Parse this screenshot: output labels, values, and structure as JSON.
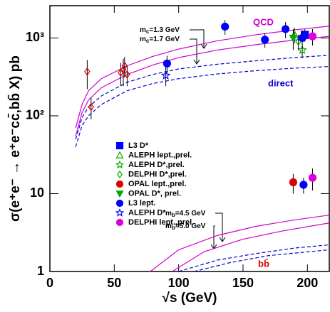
{
  "chart_data": {
    "type": "scatter",
    "ylabel": "σ(e⁺e⁻ → e⁺e⁻cc̄,bb̄ X) pb",
    "xlabel": "√s (GeV)",
    "xlim": [
      0,
      217
    ],
    "ylim": [
      1,
      2600
    ],
    "logy": true,
    "xticks": [
      0,
      50,
      100,
      150,
      200
    ],
    "yticks": [
      1,
      10,
      {
        "value": 100,
        "label": "10²"
      },
      {
        "value": 1000,
        "label": "10³"
      }
    ],
    "series": [
      {
        "name": "L3 D*",
        "color": "#0000ff",
        "marker": "square",
        "filled": true,
        "x": [
          198
        ],
        "values": [
          1100
        ],
        "errors": [
          200
        ]
      },
      {
        "name": "ALEPH lept.,prel.",
        "color": "#00aa00",
        "marker": "triangle",
        "filled": false,
        "x": [
          190
        ],
        "values": [
          1100
        ],
        "errors": [
          250
        ]
      },
      {
        "name": "ALEPH D*,prel.",
        "color": "#00aa00",
        "marker": "star",
        "filled": false,
        "x": [
          196
        ],
        "values": [
          700
        ],
        "errors": [
          150
        ]
      },
      {
        "name": "DELPHI D*,prel.",
        "color": "#00aa00",
        "marker": "diamond",
        "filled": false,
        "x": [
          193
        ],
        "values": [
          900
        ],
        "errors": [
          200
        ]
      },
      {
        "name": "OPAL lept.,prel.",
        "color": "#dd0000",
        "marker": "circle",
        "filled": true,
        "x": [
          189
        ],
        "values": [
          14
        ],
        "errors": [
          4
        ]
      },
      {
        "name": "OPAL D*, prel.",
        "color": "#00aa00",
        "marker": "triangle-down",
        "filled": true,
        "x": [
          189
        ],
        "values": [
          1000
        ],
        "errors": [
          300
        ]
      },
      {
        "name": "L3 lept.",
        "color": "#0000ff",
        "marker": "circle",
        "filled": true,
        "x": [
          91,
          136,
          167,
          183,
          196,
          197
        ],
        "values": [
          470,
          1400,
          950,
          1300,
          1000,
          13
        ],
        "errors": [
          120,
          300,
          200,
          300,
          250,
          3
        ]
      },
      {
        "name": "ALEPH D*",
        "color": "#0000ff",
        "marker": "star",
        "filled": false,
        "x": [
          90
        ],
        "values": [
          330
        ],
        "errors": [
          90
        ]
      },
      {
        "name": "DELPHI lept.,prel.",
        "color": "#dd00dd",
        "marker": "circle",
        "filled": true,
        "x": [
          204,
          204
        ],
        "values": [
          1050,
          16
        ],
        "errors": [
          250,
          5
        ]
      },
      {
        "color": "#dd0000",
        "marker": "diamond",
        "filled": false,
        "x": [
          29,
          32,
          55,
          57,
          58,
          60
        ],
        "values": [
          370,
          130,
          360,
          390,
          440,
          340
        ],
        "errors": [
          150,
          40,
          120,
          150,
          130,
          100
        ]
      }
    ],
    "curves": [
      {
        "color": "#cc00cc",
        "style": "solid",
        "x": [
          20,
          25,
          30,
          40,
          60,
          80,
          100,
          130,
          160,
          190,
          217
        ],
        "values": [
          70,
          140,
          210,
          300,
          440,
          580,
          720,
          920,
          1100,
          1270,
          1420
        ]
      },
      {
        "color": "#cc00cc",
        "style": "solid",
        "x": [
          20,
          25,
          30,
          40,
          60,
          80,
          100,
          130,
          160,
          190,
          217
        ],
        "values": [
          55,
          110,
          160,
          230,
          340,
          450,
          560,
          700,
          820,
          940,
          1050
        ]
      },
      {
        "color": "#0000cc",
        "style": "dashed",
        "x": [
          20,
          25,
          30,
          40,
          60,
          80,
          100,
          130,
          160,
          190,
          217
        ],
        "values": [
          50,
          95,
          130,
          180,
          270,
          340,
          400,
          460,
          510,
          560,
          600
        ]
      },
      {
        "color": "#0000cc",
        "style": "dashed",
        "x": [
          20,
          25,
          30,
          40,
          60,
          80,
          100,
          130,
          160,
          190,
          217
        ],
        "values": [
          40,
          75,
          100,
          140,
          210,
          260,
          300,
          345,
          380,
          410,
          430
        ]
      },
      {
        "color": "#cc00cc",
        "style": "solid",
        "x": [
          78,
          100,
          130,
          160,
          190,
          217
        ],
        "values": [
          1,
          1.9,
          2.9,
          3.8,
          4.6,
          5.3
        ]
      },
      {
        "color": "#cc00cc",
        "style": "solid",
        "x": [
          95,
          120,
          150,
          180,
          217
        ],
        "values": [
          1,
          1.8,
          2.6,
          3.3,
          4.2
        ]
      },
      {
        "color": "#0000cc",
        "style": "dashed",
        "x": [
          100,
          130,
          160,
          190,
          217
        ],
        "values": [
          1,
          1.4,
          1.7,
          2.0,
          2.2
        ]
      },
      {
        "color": "#0000cc",
        "style": "dashed",
        "x": [
          112,
          140,
          170,
          217
        ],
        "values": [
          1,
          1.3,
          1.6,
          1.9
        ]
      }
    ],
    "annotations": {
      "qcd": "QCD",
      "direct": "direct",
      "bb": "bb̄",
      "mc1": {
        "symbol": "m",
        "sub": "c",
        "text": "=1.3 GeV"
      },
      "mc2": {
        "symbol": "m",
        "sub": "c",
        "text": "=1.7 GeV"
      },
      "mb1": {
        "symbol": "m",
        "sub": "b",
        "text": "=4.5 GeV"
      },
      "mb2": {
        "symbol": "m",
        "sub": "b",
        "text": "=5.0 GeV"
      }
    }
  }
}
